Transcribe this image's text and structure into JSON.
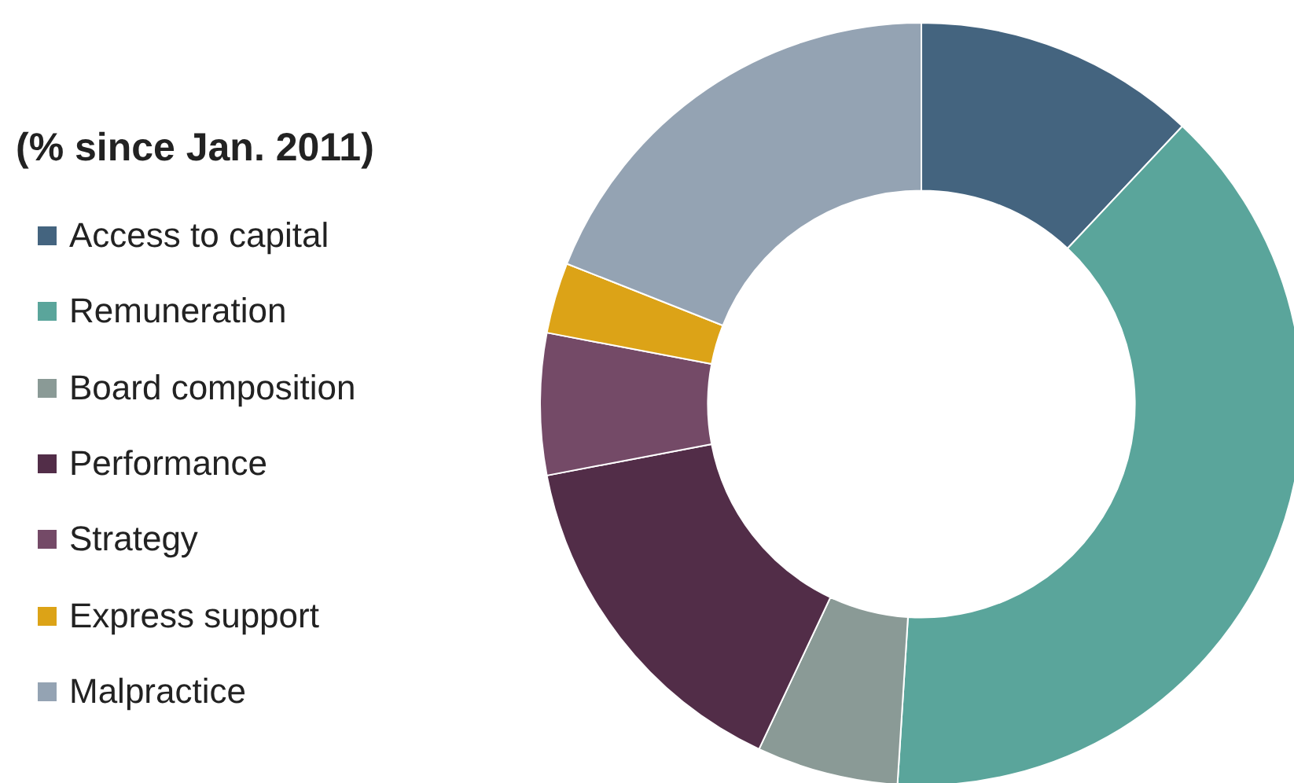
{
  "chart_data": {
    "type": "donut",
    "title": "(% since Jan. 2011)",
    "categories": [
      "Access to capital",
      "Remuneration",
      "Board composition",
      "Performance",
      "Strategy",
      "Express support",
      "Malpractice"
    ],
    "values": [
      12,
      39,
      6,
      15,
      6,
      3,
      19
    ],
    "colors": [
      "#44647f",
      "#5aa59b",
      "#8a9a96",
      "#522d48",
      "#744a67",
      "#dca317",
      "#94a3b3"
    ],
    "legend": "left"
  }
}
